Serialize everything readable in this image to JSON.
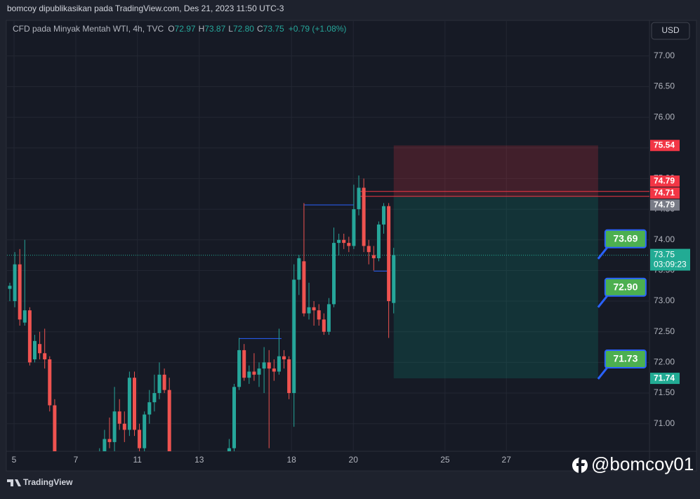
{
  "header": {
    "text": "bomcoy dipublikasikan pada TradingView.com, Des 21, 2023 11:50 UTC-3"
  },
  "chart_data": {
    "type": "candlestick",
    "title": "CFD pada Minyak Mentah WTI, 4h, TVC",
    "ohlc_legend": {
      "labels": [
        "O",
        "H",
        "L",
        "C"
      ],
      "texts": [
        "72.97",
        "73.87",
        "72.80",
        "73.75"
      ],
      "change": "+0.79 (+1.08%)"
    },
    "currency": "USD",
    "open": [
      73.2,
      73.0,
      73.6,
      72.65,
      72.85,
      72.05,
      72.3,
      72.15,
      72.05,
      71.3,
      70.5,
      70.2,
      70.3,
      70.15,
      70.25,
      70.1,
      70.2,
      70.35,
      70.3,
      70.55,
      70.75,
      70.7,
      71.2,
      71.0,
      70.9,
      71.75,
      70.9,
      70.6,
      71.15,
      71.35,
      71.5,
      71.8,
      71.55,
      70.45,
      70.1,
      70.0,
      69.9,
      69.8,
      69.9,
      70.0,
      70.1,
      70.2,
      70.15,
      70.3,
      70.45,
      70.6,
      71.6,
      72.2,
      71.75,
      71.85,
      71.8,
      71.9,
      72.0,
      71.9,
      71.85,
      72.1,
      72.05,
      71.5,
      73.35,
      73.65,
      72.8,
      72.9,
      72.85,
      72.7,
      72.5,
      72.95,
      73.95,
      74.0,
      73.95,
      73.9,
      74.5,
      74.85,
      73.9,
      73.75,
      73.7,
      74.25,
      74.55,
      72.97
    ],
    "high": [
      73.3,
      73.8,
      73.85,
      74.0,
      72.9,
      72.45,
      72.5,
      72.55,
      72.1,
      71.4,
      70.55,
      70.4,
      70.45,
      70.35,
      70.4,
      70.3,
      70.45,
      70.5,
      70.6,
      70.9,
      71.1,
      71.6,
      71.4,
      71.2,
      71.85,
      71.85,
      71.0,
      71.2,
      71.55,
      71.8,
      72.0,
      71.9,
      71.75,
      70.5,
      70.3,
      70.2,
      70.1,
      70.0,
      70.2,
      70.3,
      70.35,
      70.4,
      70.45,
      70.5,
      70.75,
      71.65,
      72.4,
      72.3,
      71.95,
      72.15,
      72.0,
      72.25,
      72.2,
      72.05,
      72.55,
      72.2,
      72.1,
      73.6,
      73.75,
      74.6,
      73.3,
      73.0,
      72.95,
      72.8,
      73.05,
      74.2,
      74.1,
      74.1,
      74.05,
      74.9,
      75.05,
      75.0,
      74.0,
      73.9,
      74.3,
      74.6,
      74.6,
      73.87
    ],
    "low": [
      73.0,
      72.9,
      72.6,
      72.6,
      71.95,
      72.0,
      72.05,
      71.9,
      71.2,
      70.4,
      70.1,
      70.0,
      70.1,
      69.9,
      70.0,
      69.9,
      70.05,
      70.1,
      70.2,
      70.45,
      70.6,
      70.5,
      70.9,
      70.7,
      70.8,
      70.8,
      70.4,
      70.5,
      71.0,
      71.2,
      71.4,
      71.5,
      70.4,
      70.0,
      69.8,
      69.7,
      69.6,
      69.5,
      69.7,
      69.8,
      69.9,
      70.0,
      70.0,
      70.1,
      70.4,
      70.55,
      71.55,
      71.7,
      71.65,
      71.7,
      71.6,
      71.5,
      70.6,
      71.7,
      71.8,
      71.9,
      71.4,
      70.95,
      73.1,
      72.75,
      72.7,
      72.6,
      72.6,
      72.45,
      72.45,
      72.9,
      73.75,
      73.85,
      73.8,
      73.85,
      74.4,
      73.8,
      73.6,
      73.5,
      73.65,
      74.1,
      72.4,
      72.8
    ],
    "close": [
      73.25,
      73.6,
      72.7,
      72.85,
      72.0,
      72.35,
      72.15,
      72.05,
      71.3,
      70.5,
      70.2,
      70.3,
      70.15,
      70.25,
      70.1,
      70.2,
      70.35,
      70.3,
      70.55,
      70.75,
      70.7,
      71.2,
      71.0,
      70.9,
      71.75,
      70.9,
      70.6,
      71.15,
      71.35,
      71.5,
      71.8,
      71.55,
      70.45,
      70.1,
      70.0,
      69.9,
      69.8,
      69.9,
      70.0,
      70.1,
      70.2,
      70.15,
      70.3,
      70.45,
      70.6,
      71.6,
      72.2,
      71.75,
      71.85,
      71.8,
      71.9,
      72.0,
      71.9,
      71.85,
      72.1,
      72.05,
      71.5,
      73.35,
      73.7,
      72.8,
      72.9,
      72.85,
      72.7,
      72.5,
      72.95,
      73.95,
      74.0,
      73.95,
      73.9,
      74.5,
      74.85,
      73.9,
      73.8,
      73.7,
      74.25,
      74.55,
      73.0,
      73.75
    ],
    "up_color": "#26a69a",
    "down_color": "#ef5350",
    "xlim": [
      -0.56,
      128.3
    ],
    "xticks": [
      {
        "value": 0.85,
        "label": "5"
      },
      {
        "value": 13.24,
        "label": "7"
      },
      {
        "value": 25.6,
        "label": "11"
      },
      {
        "value": 38.0,
        "label": "13"
      },
      {
        "value": 56.5,
        "label": "18"
      },
      {
        "value": 68.9,
        "label": "20"
      },
      {
        "value": 87.3,
        "label": "25"
      },
      {
        "value": 99.6,
        "label": "27"
      }
    ],
    "ylim": [
      70.55,
      77.57
    ],
    "yticks": [
      {
        "value": 71,
        "label": "71.00"
      },
      {
        "value": 71.5,
        "label": "71.50"
      },
      {
        "value": 72,
        "label": "72.00"
      },
      {
        "value": 72.5,
        "label": "72.50"
      },
      {
        "value": 73,
        "label": "73.00"
      },
      {
        "value": 73.5,
        "label": "73.50"
      },
      {
        "value": 74,
        "label": "74.00"
      },
      {
        "value": 74.5,
        "label": "74.50"
      },
      {
        "value": 75,
        "label": "75.00"
      },
      {
        "value": 75.5,
        "label": "75.50"
      },
      {
        "value": 76,
        "label": "76.00"
      },
      {
        "value": 76.5,
        "label": "76.50"
      },
      {
        "value": 77,
        "label": "77.00"
      }
    ],
    "grid": true,
    "last_price": {
      "value": 73.75,
      "label": "73.75",
      "countdown": "03:09:23",
      "color": "#22ab94"
    },
    "position": {
      "x": [
        77,
        118
      ],
      "stop": 75.54,
      "entry": 74.71,
      "target": 71.74
    },
    "price_lines": [
      {
        "value": 74.79,
        "x": 70
      },
      {
        "value": 74.71,
        "x": 70
      }
    ],
    "price_labels": [
      {
        "value": 75.54,
        "label": "75.54",
        "color": "#f23645"
      },
      {
        "value": 74.79,
        "label": "74.79",
        "color": "#f23645"
      },
      {
        "value": 74.79,
        "label": "74.79",
        "color": "#787b86"
      },
      {
        "value": 74.71,
        "label": "74.71",
        "color": "#f23645"
      },
      {
        "value": 71.74,
        "label": "71.74",
        "color": "#22ab94"
      }
    ],
    "levels": [
      {
        "x": [
          59,
          69
        ],
        "value": 74.57
      },
      {
        "x": [
          46,
          54.5
        ],
        "value": 72.39
      },
      {
        "x": [
          73,
          76
        ],
        "value": 73.49
      }
    ],
    "callouts": [
      {
        "x": 118,
        "value": 73.69,
        "label": "73.69"
      },
      {
        "x": 118,
        "value": 72.9,
        "label": "72.90"
      },
      {
        "x": 118,
        "value": 71.73,
        "label": "71.73"
      }
    ]
  },
  "watermark": "@bomcoy01",
  "footer": "TradingView"
}
